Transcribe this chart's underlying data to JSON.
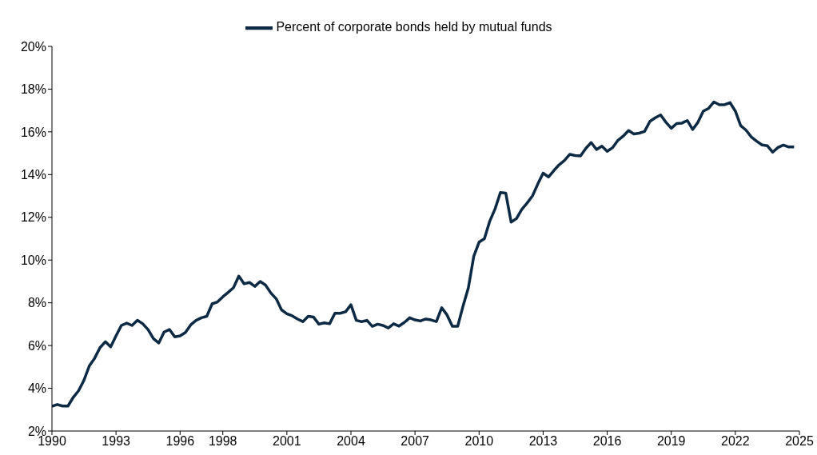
{
  "chart_data": {
    "type": "line",
    "legend": "top",
    "grid": false,
    "marker": "none",
    "line_style": "solid",
    "xlim": [
      1990,
      2025
    ],
    "ylim": [
      2,
      20
    ],
    "xticks": [
      1990,
      1993,
      1996,
      1998,
      2001,
      2004,
      2007,
      2010,
      2013,
      2016,
      2019,
      2022,
      2025
    ],
    "yticks": [
      {
        "value": 2,
        "label": "2%"
      },
      {
        "value": 4,
        "label": "4%"
      },
      {
        "value": 6,
        "label": "6%"
      },
      {
        "value": 8,
        "label": "8%"
      },
      {
        "value": 10,
        "label": "10%"
      },
      {
        "value": 12,
        "label": "12%"
      },
      {
        "value": 14,
        "label": "14%"
      },
      {
        "value": 16,
        "label": "16%"
      },
      {
        "value": 18,
        "label": "18%"
      },
      {
        "value": 20,
        "label": "20%"
      }
    ],
    "series": [
      {
        "name": "Percent of corporate bonds held by mutual funds",
        "color": "#0d2a45",
        "x": [
          1990,
          1990.25,
          1990.5,
          1990.75,
          1991,
          1991.25,
          1991.5,
          1991.75,
          1992,
          1992.25,
          1992.5,
          1992.75,
          1993,
          1993.25,
          1993.5,
          1993.75,
          1994,
          1994.25,
          1994.5,
          1994.75,
          1995,
          1995.25,
          1995.5,
          1995.75,
          1996,
          1996.25,
          1996.5,
          1996.75,
          1997,
          1997.25,
          1997.5,
          1997.75,
          1998,
          1998.25,
          1998.5,
          1998.75,
          1999,
          1999.25,
          1999.5,
          1999.75,
          2000,
          2000.25,
          2000.5,
          2000.75,
          2001,
          2001.25,
          2001.5,
          2001.75,
          2002,
          2002.25,
          2002.5,
          2002.75,
          2003,
          2003.25,
          2003.5,
          2003.75,
          2004,
          2004.25,
          2004.5,
          2004.75,
          2005,
          2005.25,
          2005.5,
          2005.75,
          2006,
          2006.25,
          2006.5,
          2006.75,
          2007,
          2007.25,
          2007.5,
          2007.75,
          2008,
          2008.25,
          2008.5,
          2008.75,
          2009,
          2009.25,
          2009.5,
          2009.75,
          2010,
          2010.25,
          2010.5,
          2010.75,
          2011,
          2011.25,
          2011.5,
          2011.75,
          2012,
          2012.25,
          2012.5,
          2012.75,
          2013,
          2013.25,
          2013.5,
          2013.75,
          2014,
          2014.25,
          2014.5,
          2014.75,
          2015,
          2015.25,
          2015.5,
          2015.75,
          2016,
          2016.25,
          2016.5,
          2016.75,
          2017,
          2017.25,
          2017.5,
          2017.75,
          2018,
          2018.25,
          2018.5,
          2018.75,
          2019,
          2019.25,
          2019.5,
          2019.75,
          2020,
          2020.25,
          2020.5,
          2020.75,
          2021,
          2021.25,
          2021.5,
          2021.75,
          2022,
          2022.25,
          2022.5,
          2022.75,
          2023,
          2023.25,
          2023.5,
          2023.75,
          2024,
          2024.25,
          2024.5,
          2024.75
        ],
        "values": [
          3.16,
          3.24,
          3.17,
          3.17,
          3.58,
          3.89,
          4.38,
          5.05,
          5.41,
          5.9,
          6.18,
          5.94,
          6.45,
          6.94,
          7.05,
          6.94,
          7.18,
          7.02,
          6.75,
          6.33,
          6.12,
          6.63,
          6.75,
          6.41,
          6.45,
          6.61,
          6.97,
          7.18,
          7.3,
          7.37,
          7.95,
          8.04,
          8.28,
          8.49,
          8.71,
          9.25,
          8.89,
          8.95,
          8.77,
          9.0,
          8.83,
          8.46,
          8.19,
          7.67,
          7.49,
          7.39,
          7.24,
          7.12,
          7.37,
          7.33,
          7.0,
          7.06,
          7.02,
          7.51,
          7.51,
          7.58,
          7.91,
          7.18,
          7.12,
          7.18,
          6.9,
          7.0,
          6.94,
          6.82,
          7.02,
          6.91,
          7.08,
          7.3,
          7.2,
          7.15,
          7.24,
          7.2,
          7.12,
          7.77,
          7.43,
          6.9,
          6.9,
          7.85,
          8.71,
          10.17,
          10.84,
          11.0,
          11.82,
          12.4,
          13.16,
          13.13,
          11.78,
          11.94,
          12.37,
          12.67,
          13.0,
          13.56,
          14.07,
          13.89,
          14.19,
          14.46,
          14.66,
          14.95,
          14.89,
          14.87,
          15.23,
          15.5,
          15.17,
          15.33,
          15.09,
          15.26,
          15.6,
          15.8,
          16.06,
          15.9,
          15.94,
          16.02,
          16.49,
          16.66,
          16.79,
          16.45,
          16.17,
          16.39,
          16.41,
          16.53,
          16.11,
          16.45,
          16.97,
          17.1,
          17.4,
          17.27,
          17.27,
          17.37,
          16.97,
          16.29,
          16.08,
          15.76,
          15.56,
          15.39,
          15.35,
          15.05,
          15.27,
          15.38,
          15.29,
          15.29
        ]
      }
    ]
  }
}
